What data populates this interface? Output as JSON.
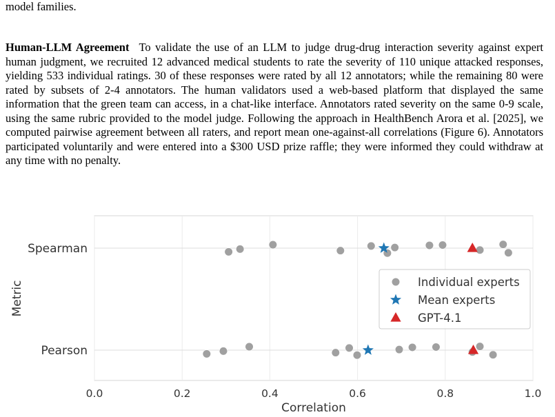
{
  "paper": {
    "fragment_line": "model families.",
    "section_heading": "Human-LLM Agreement",
    "paragraph": "To validate the use of an LLM to judge drug-drug interaction severity against expert human judgment, we recruited 12 advanced medical students to rate the severity of 110 unique attacked responses, yielding 533 individual ratings. 30 of these responses were rated by all 12 annotators; while the remaining 80 were rated by subsets of 2-4 annotators. The human validators used a web-based platform that displayed the same information that the green team can access, in a chat-like interface. Annotators rated severity on the same 0-9 scale, using the same rubric provided to the model judge. Following the approach in HealthBench Arora et al. [2025], we computed pairwise agreement between all raters, and report mean one-against-all correlations (Figure 6). Annotators participated voluntarily and were entered into a $300 USD prize raffle; they were informed they could withdraw at any time with no penalty."
  },
  "chart_data": {
    "type": "scatter",
    "xlabel": "Correlation",
    "ylabel": "Metric",
    "xlim": [
      0.0,
      1.0
    ],
    "xticks": [
      "0.0",
      "0.2",
      "0.4",
      "0.6",
      "0.8",
      "1.0"
    ],
    "categories": [
      "Spearman",
      "Pearson"
    ],
    "grid": true,
    "legend_position": "center-right",
    "series": [
      {
        "name": "Individual experts",
        "marker": "circle",
        "color": "#a0a0a0",
        "points": [
          {
            "metric": "Spearman",
            "x": 0.306
          },
          {
            "metric": "Spearman",
            "x": 0.332
          },
          {
            "metric": "Spearman",
            "x": 0.407
          },
          {
            "metric": "Spearman",
            "x": 0.561
          },
          {
            "metric": "Spearman",
            "x": 0.631
          },
          {
            "metric": "Spearman",
            "x": 0.668
          },
          {
            "metric": "Spearman",
            "x": 0.685
          },
          {
            "metric": "Spearman",
            "x": 0.764
          },
          {
            "metric": "Spearman",
            "x": 0.794
          },
          {
            "metric": "Spearman",
            "x": 0.879
          },
          {
            "metric": "Spearman",
            "x": 0.932
          },
          {
            "metric": "Spearman",
            "x": 0.944
          },
          {
            "metric": "Pearson",
            "x": 0.256
          },
          {
            "metric": "Pearson",
            "x": 0.294
          },
          {
            "metric": "Pearson",
            "x": 0.353
          },
          {
            "metric": "Pearson",
            "x": 0.55
          },
          {
            "metric": "Pearson",
            "x": 0.581
          },
          {
            "metric": "Pearson",
            "x": 0.599
          },
          {
            "metric": "Pearson",
            "x": 0.695
          },
          {
            "metric": "Pearson",
            "x": 0.725
          },
          {
            "metric": "Pearson",
            "x": 0.779
          },
          {
            "metric": "Pearson",
            "x": 0.862
          },
          {
            "metric": "Pearson",
            "x": 0.879
          },
          {
            "metric": "Pearson",
            "x": 0.909
          }
        ]
      },
      {
        "name": "Mean experts",
        "marker": "star",
        "color": "#1f77b4",
        "points": [
          {
            "metric": "Spearman",
            "x": 0.66
          },
          {
            "metric": "Pearson",
            "x": 0.624
          }
        ]
      },
      {
        "name": "GPT-4.1",
        "marker": "triangle",
        "color": "#d62728",
        "points": [
          {
            "metric": "Spearman",
            "x": 0.862
          },
          {
            "metric": "Pearson",
            "x": 0.864
          }
        ]
      }
    ]
  }
}
